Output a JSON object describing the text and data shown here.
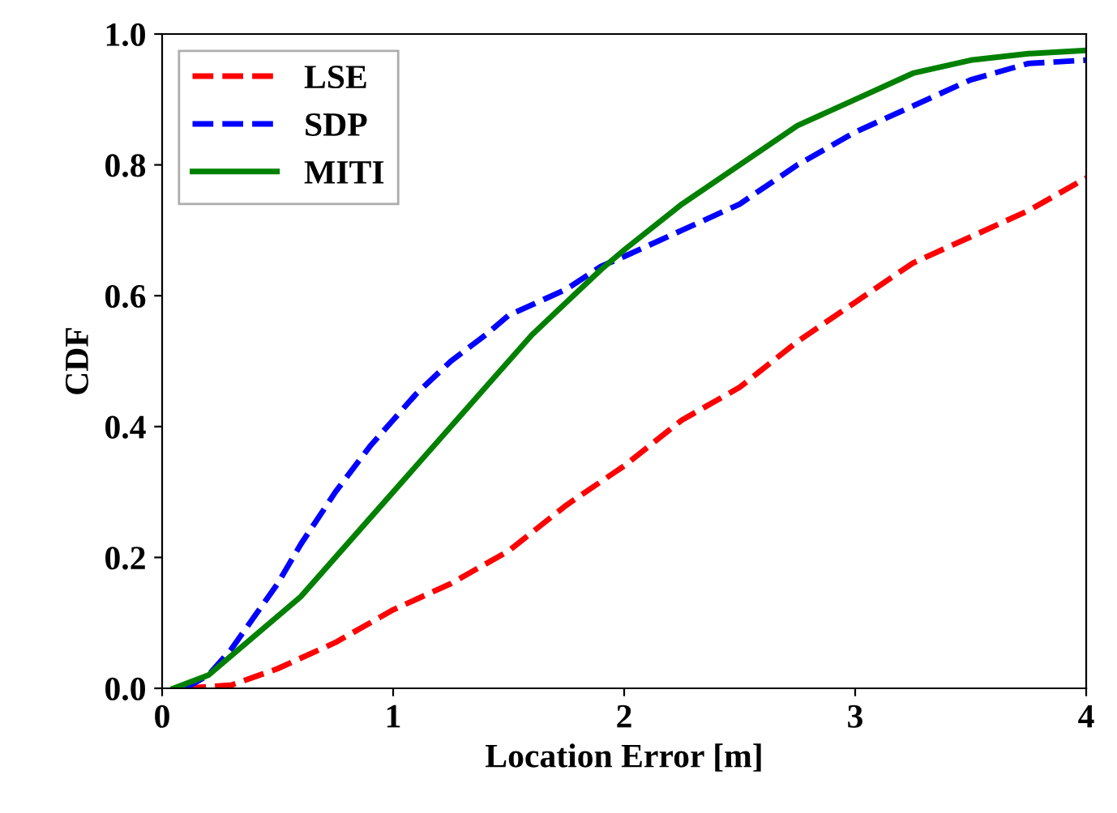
{
  "chart_data": {
    "type": "line",
    "xlabel": "Location Error [m]",
    "ylabel": "CDF",
    "xlim": [
      0,
      4
    ],
    "ylim": [
      0,
      1.0
    ],
    "xticks": [
      0,
      1,
      2,
      3,
      4
    ],
    "yticks": [
      {
        "value": 0,
        "label": "0.0"
      },
      {
        "value": 0.2,
        "label": "0.2"
      },
      {
        "value": 0.4,
        "label": "0.4"
      },
      {
        "value": 0.6,
        "label": "0.6"
      },
      {
        "value": 0.8,
        "label": "0.8"
      },
      {
        "value": 1.0,
        "label": "1.0"
      }
    ],
    "grid": false,
    "legend": "top left",
    "marker": "none",
    "series": [
      {
        "name": "LSE",
        "color": "#ff0000",
        "line_style": "dashed",
        "x": [
          0.1,
          0.3,
          0.5,
          0.75,
          1.0,
          1.25,
          1.5,
          1.75,
          2.0,
          2.25,
          2.5,
          2.75,
          3.0,
          3.25,
          3.5,
          3.75,
          4.0
        ],
        "values": [
          0,
          0.005,
          0.03,
          0.07,
          0.12,
          0.16,
          0.21,
          0.28,
          0.34,
          0.41,
          0.46,
          0.53,
          0.59,
          0.65,
          0.69,
          0.73,
          0.78
        ]
      },
      {
        "name": "SDP",
        "color": "#0000ff",
        "line_style": "dashed",
        "x": [
          0.1,
          0.2,
          0.3,
          0.4,
          0.5,
          0.6,
          0.75,
          0.9,
          1.0,
          1.1,
          1.25,
          1.4,
          1.5,
          1.75,
          1.9,
          2.0,
          2.25,
          2.5,
          2.75,
          3.0,
          3.25,
          3.5,
          3.75,
          4.0
        ],
        "values": [
          0,
          0.02,
          0.06,
          0.11,
          0.16,
          0.22,
          0.3,
          0.37,
          0.41,
          0.45,
          0.5,
          0.54,
          0.57,
          0.61,
          0.645,
          0.66,
          0.7,
          0.74,
          0.8,
          0.85,
          0.89,
          0.93,
          0.955,
          0.96
        ]
      },
      {
        "name": "MITI",
        "color": "#008000",
        "line_style": "solid",
        "x": [
          0.05,
          0.2,
          0.3,
          0.4,
          0.5,
          0.6,
          0.75,
          0.9,
          1.0,
          1.1,
          1.25,
          1.4,
          1.5,
          1.6,
          1.75,
          1.9,
          2.0,
          2.25,
          2.5,
          2.75,
          3.0,
          3.25,
          3.5,
          3.75,
          4.0
        ],
        "values": [
          0,
          0.02,
          0.05,
          0.08,
          0.11,
          0.14,
          0.2,
          0.26,
          0.3,
          0.34,
          0.4,
          0.46,
          0.5,
          0.54,
          0.59,
          0.64,
          0.67,
          0.74,
          0.8,
          0.86,
          0.9,
          0.94,
          0.96,
          0.97,
          0.975
        ]
      }
    ]
  }
}
